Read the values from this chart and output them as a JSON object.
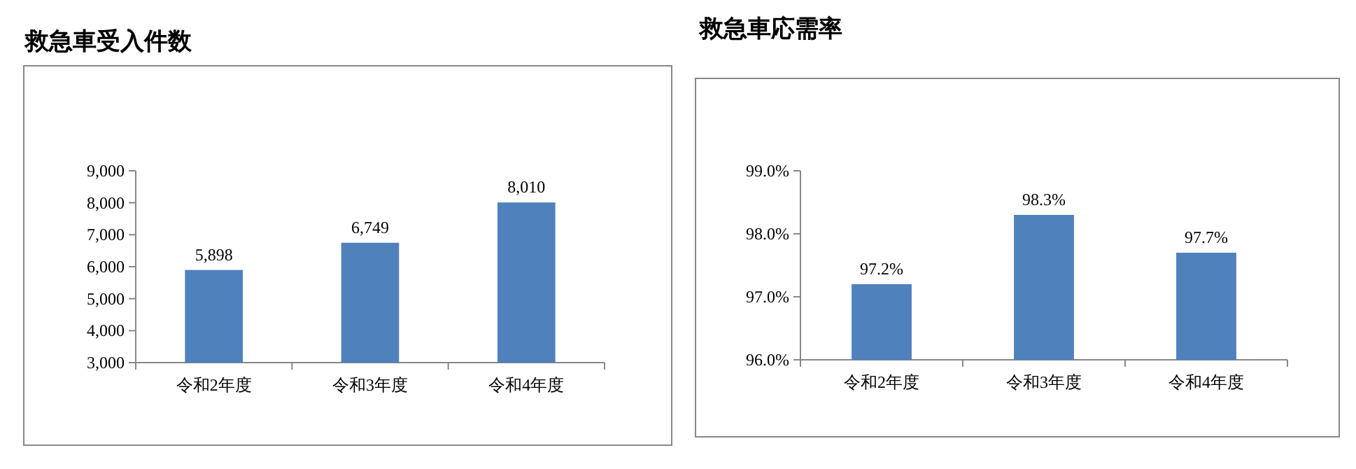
{
  "chart_data": [
    {
      "type": "bar",
      "title": "救急車受入件数",
      "categories": [
        "令和2年度",
        "令和3年度",
        "令和4年度"
      ],
      "values": [
        5898,
        6749,
        8010
      ],
      "value_labels": [
        "5,898",
        "6,749",
        "8,010"
      ],
      "color": "#4f81bd",
      "ylim": [
        3000,
        9000
      ],
      "yticks": [
        {
          "value": 3000,
          "label": "3,000"
        },
        {
          "value": 4000,
          "label": "4,000"
        },
        {
          "value": 5000,
          "label": "5,000"
        },
        {
          "value": 6000,
          "label": "6,000"
        },
        {
          "value": 7000,
          "label": "7,000"
        },
        {
          "value": 8000,
          "label": "8,000"
        },
        {
          "value": 9000,
          "label": "9,000"
        }
      ]
    },
    {
      "type": "bar",
      "title": "救急車応需率",
      "categories": [
        "令和2年度",
        "令和3年度",
        "令和4年度"
      ],
      "values": [
        97.2,
        98.3,
        97.7
      ],
      "value_labels": [
        "97.2%",
        "98.3%",
        "97.7%"
      ],
      "color": "#4f81bd",
      "ylim": [
        96,
        99
      ],
      "yticks": [
        {
          "value": 96,
          "label": "96.0%"
        },
        {
          "value": 97,
          "label": "97.0%"
        },
        {
          "value": 98,
          "label": "98.0%"
        },
        {
          "value": 99,
          "label": "99.0%"
        }
      ]
    }
  ]
}
